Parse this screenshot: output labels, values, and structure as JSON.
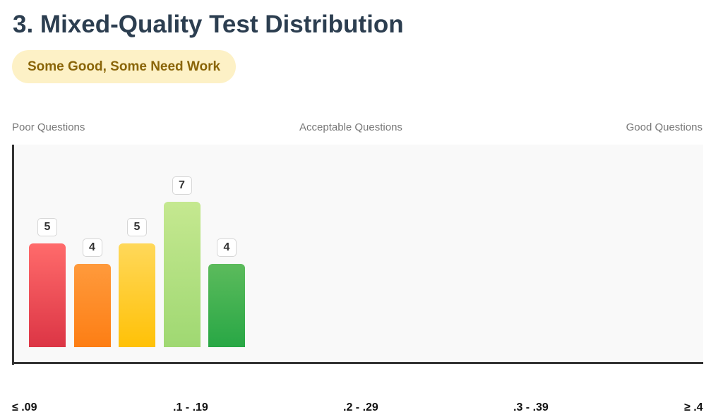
{
  "header": {
    "title": "3. Mixed-Quality Test Distribution",
    "badge": "Some Good, Some Need Work"
  },
  "zones": {
    "poor": "Poor Questions",
    "acceptable": "Acceptable Questions",
    "good": "Good Questions"
  },
  "chart_data": {
    "type": "bar",
    "title": "3. Mixed-Quality Test Distribution",
    "subtitle": "Some Good, Some Need Work",
    "categories": [
      "≤ .09",
      ".1 - .19",
      ".2 - .29",
      ".3 - .39",
      "≥ .4"
    ],
    "bars": [
      {
        "value": 5,
        "color": "#dc3545"
      },
      {
        "value": 4,
        "color": "#fd7e14"
      },
      {
        "value": 5,
        "color": "#ffc107"
      },
      {
        "value": 7,
        "color": "#9fd872"
      },
      {
        "value": 4,
        "color": "#28a745"
      }
    ],
    "ylim": [
      0,
      20
    ],
    "grid": false,
    "legend": "none",
    "colors": {
      "background": "#f9f9f9",
      "axis": "#333333",
      "title": "#2c3e50",
      "badge_bg": "#fdf1c6",
      "badge_text": "#8a6508"
    }
  }
}
